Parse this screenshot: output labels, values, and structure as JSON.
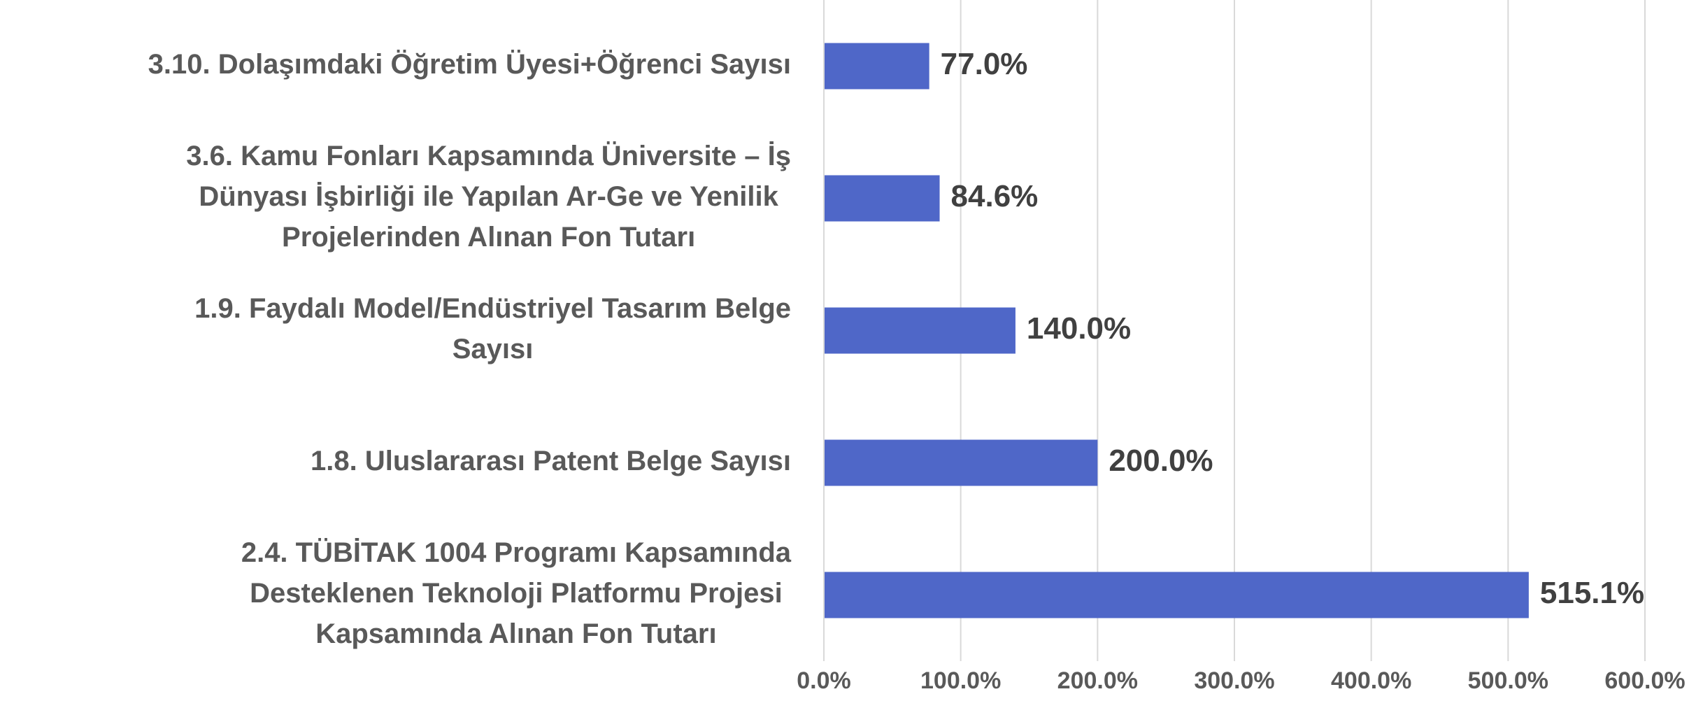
{
  "chart_data": {
    "type": "barh",
    "categories": [
      [
        "3.10. Dolaşımdaki Öğretim Üyesi+Öğrenci Sayısı"
      ],
      [
        "3.6. Kamu Fonları Kapsamında Üniversite – İş",
        "Dünyası İşbirliği ile Yapılan Ar-Ge ve Yenilik",
        "Projelerinden Alınan Fon Tutarı"
      ],
      [
        "1.9. Faydalı Model/Endüstriyel Tasarım Belge",
        "Sayısı"
      ],
      [
        "1.8. Uluslararası Patent Belge Sayısı"
      ],
      [
        "2.4. TÜBİTAK 1004 Programı Kapsamında",
        "Desteklenen Teknoloji Platformu Projesi",
        "Kapsamında Alınan Fon Tutarı"
      ]
    ],
    "values": [
      77.0,
      84.6,
      140.0,
      200.0,
      515.1
    ],
    "value_labels": [
      "77.0%",
      "84.6%",
      "140.0%",
      "200.0%",
      "515.1%"
    ],
    "color": "#4f67c8",
    "xlim": [
      0,
      600
    ],
    "xticks": [
      {
        "value": 0,
        "label": "0.0%"
      },
      {
        "value": 100,
        "label": "100.0%"
      },
      {
        "value": 200,
        "label": "200.0%"
      },
      {
        "value": 300,
        "label": "300.0%"
      },
      {
        "value": 400,
        "label": "400.0%"
      },
      {
        "value": 500,
        "label": "500.0%"
      },
      {
        "value": 600,
        "label": "600.0%"
      }
    ],
    "grid": true
  }
}
